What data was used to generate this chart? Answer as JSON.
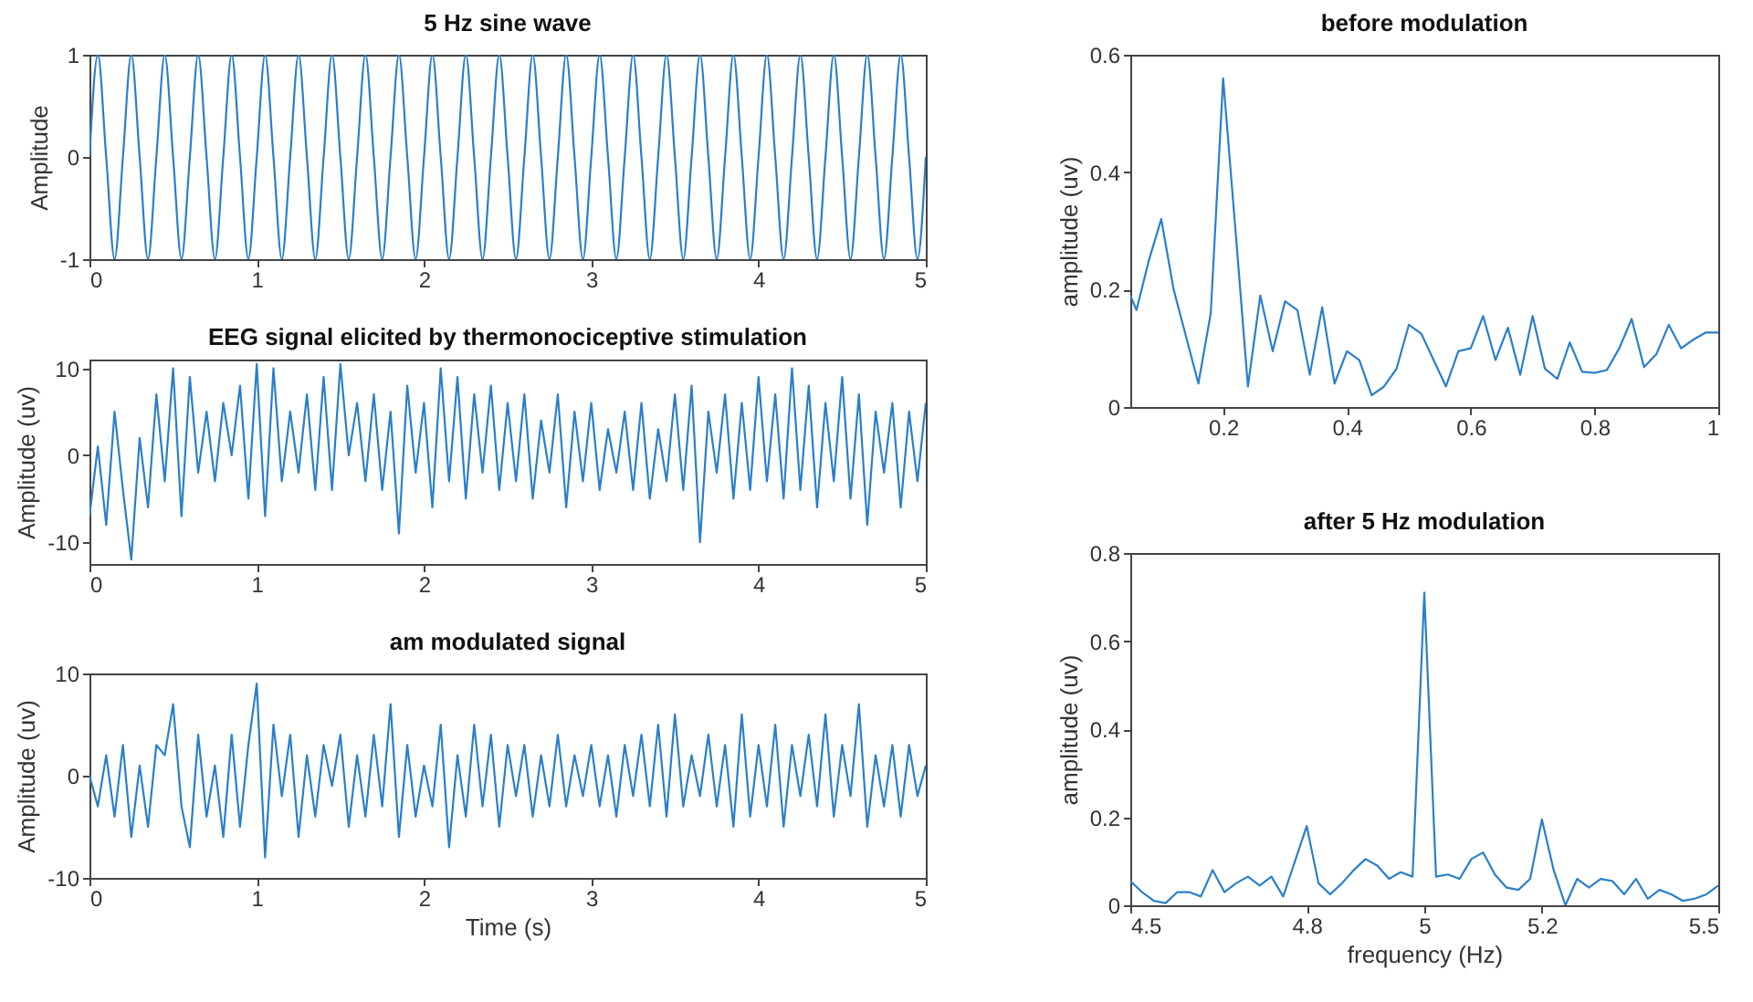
{
  "chart_data": [
    {
      "type": "line",
      "title": "5 Hz sine wave",
      "ylabel": "Amplitude",
      "xlim": [
        0,
        5
      ],
      "xticks": [
        0,
        1,
        2,
        3,
        4,
        5
      ],
      "ylim": [
        -1,
        1
      ],
      "yticks": [
        -1,
        0,
        1
      ],
      "grid": false,
      "x": [
        0,
        0.05,
        0.1,
        0.15,
        0.2,
        0.25,
        0.3,
        0.35,
        0.4,
        0.45,
        0.5,
        0.55,
        0.6,
        0.65,
        0.7,
        0.75,
        0.8,
        0.85,
        0.9,
        0.95,
        1,
        1.05,
        1.1,
        1.15,
        1.2,
        1.25,
        1.3,
        1.35,
        1.4,
        1.45,
        1.5,
        1.55,
        1.6,
        1.65,
        1.7,
        1.75,
        1.8,
        1.85,
        1.9,
        1.95,
        2,
        2.05,
        2.1,
        2.15,
        2.2,
        2.25,
        2.3,
        2.35,
        2.4,
        2.45,
        2.5,
        2.55,
        2.6,
        2.65,
        2.7,
        2.75,
        2.8,
        2.85,
        2.9,
        2.95,
        3,
        3.05,
        3.1,
        3.15,
        3.2,
        3.25,
        3.3,
        3.35,
        3.4,
        3.45,
        3.5,
        3.55,
        3.6,
        3.65,
        3.7,
        3.75,
        3.8,
        3.85,
        3.9,
        3.95,
        4,
        4.05,
        4.1,
        4.15,
        4.2,
        4.25,
        4.3,
        4.35,
        4.4,
        4.45,
        4.5,
        4.55,
        4.6,
        4.65,
        4.7,
        4.75,
        4.8,
        4.85,
        4.9,
        4.95,
        5
      ],
      "series": [
        {
          "color": "#2a7fc9",
          "values": [
            0,
            1,
            0,
            -1,
            0,
            1,
            0,
            -1,
            0,
            1,
            0,
            -1,
            0,
            1,
            0,
            -1,
            0,
            1,
            0,
            -1,
            0,
            1,
            0,
            -1,
            0,
            1,
            0,
            -1,
            0,
            1,
            0,
            -1,
            0,
            1,
            0,
            -1,
            0,
            1,
            0,
            -1,
            0,
            1,
            0,
            -1,
            0,
            1,
            0,
            -1,
            0,
            1,
            0,
            -1,
            0,
            1,
            0,
            -1,
            0,
            1,
            0,
            -1,
            0,
            1,
            0,
            -1,
            0,
            1,
            0,
            -1,
            0,
            1,
            0,
            -1,
            0,
            1,
            0,
            -1,
            0,
            1,
            0,
            -1,
            0,
            1,
            0,
            -1,
            0,
            1,
            0,
            -1,
            0,
            1,
            0,
            -1,
            0,
            1,
            0,
            -1,
            0,
            1,
            0,
            -1,
            0
          ]
        }
      ]
    },
    {
      "type": "line",
      "title": "EEG signal elicited by thermonociceptive stimulation",
      "ylabel": "Amplitude (uv)",
      "xlim": [
        0,
        5
      ],
      "xticks": [
        0,
        1,
        2,
        3,
        4,
        5
      ],
      "ylim": [
        -12.5,
        11
      ],
      "yticks": [
        -10,
        0,
        10
      ],
      "grid": false,
      "x": [
        0,
        0.05,
        0.1,
        0.15,
        0.2,
        0.25,
        0.3,
        0.35,
        0.4,
        0.45,
        0.5,
        0.55,
        0.6,
        0.65,
        0.7,
        0.75,
        0.8,
        0.85,
        0.9,
        0.95,
        1,
        1.05,
        1.1,
        1.15,
        1.2,
        1.25,
        1.3,
        1.35,
        1.4,
        1.45,
        1.5,
        1.55,
        1.6,
        1.65,
        1.7,
        1.75,
        1.8,
        1.85,
        1.9,
        1.95,
        2,
        2.05,
        2.1,
        2.15,
        2.2,
        2.25,
        2.3,
        2.35,
        2.4,
        2.45,
        2.5,
        2.55,
        2.6,
        2.65,
        2.7,
        2.75,
        2.8,
        2.85,
        2.9,
        2.95,
        3,
        3.05,
        3.1,
        3.15,
        3.2,
        3.25,
        3.3,
        3.35,
        3.4,
        3.45,
        3.5,
        3.55,
        3.6,
        3.65,
        3.7,
        3.75,
        3.8,
        3.85,
        3.9,
        3.95,
        4,
        4.05,
        4.1,
        4.15,
        4.2,
        4.25,
        4.3,
        4.35,
        4.4,
        4.45,
        4.5,
        4.55,
        4.6,
        4.65,
        4.7,
        4.75,
        4.8,
        4.85,
        4.9,
        4.95,
        5
      ],
      "series": [
        {
          "color": "#2a7fc9",
          "values": [
            -7,
            1,
            -8,
            5,
            -4,
            -12,
            2,
            -6,
            7,
            -3,
            10,
            -7,
            9,
            -2,
            5,
            -3,
            6,
            0,
            8,
            -5,
            10.5,
            -7,
            10,
            -3,
            5,
            -2,
            7,
            -4,
            9,
            -4,
            10.5,
            0,
            6,
            -3,
            7,
            -4,
            5,
            -9,
            8,
            -2,
            6,
            -6,
            10,
            -3,
            9,
            -5,
            7,
            -2,
            8,
            -4,
            6,
            -3,
            7,
            -5,
            4,
            -2,
            7,
            -6,
            5,
            -3,
            6,
            -4,
            3,
            -2,
            5,
            -4,
            6,
            -5,
            3,
            -3,
            7,
            -4,
            8,
            -10,
            5,
            -2,
            7,
            -5,
            6,
            -4,
            9,
            -3,
            7,
            -5,
            10,
            -4,
            8,
            -6,
            6,
            -3,
            9,
            -5,
            7,
            -8,
            5,
            -2,
            6,
            -6,
            5,
            -3,
            6
          ]
        }
      ]
    },
    {
      "type": "line",
      "title": "am modulated signal",
      "xlabel": "Time (s)",
      "ylabel": "Amplitude (uv)",
      "xlim": [
        0,
        5
      ],
      "xticks": [
        0,
        1,
        2,
        3,
        4,
        5
      ],
      "ylim": [
        -10,
        10
      ],
      "yticks": [
        -10,
        0,
        10
      ],
      "grid": false,
      "x": [
        0,
        0.05,
        0.1,
        0.15,
        0.2,
        0.25,
        0.3,
        0.35,
        0.4,
        0.45,
        0.5,
        0.55,
        0.6,
        0.65,
        0.7,
        0.75,
        0.8,
        0.85,
        0.9,
        0.95,
        1,
        1.05,
        1.1,
        1.15,
        1.2,
        1.25,
        1.3,
        1.35,
        1.4,
        1.45,
        1.5,
        1.55,
        1.6,
        1.65,
        1.7,
        1.75,
        1.8,
        1.85,
        1.9,
        1.95,
        2,
        2.05,
        2.1,
        2.15,
        2.2,
        2.25,
        2.3,
        2.35,
        2.4,
        2.45,
        2.5,
        2.55,
        2.6,
        2.65,
        2.7,
        2.75,
        2.8,
        2.85,
        2.9,
        2.95,
        3,
        3.05,
        3.1,
        3.15,
        3.2,
        3.25,
        3.3,
        3.35,
        3.4,
        3.45,
        3.5,
        3.55,
        3.6,
        3.65,
        3.7,
        3.75,
        3.8,
        3.85,
        3.9,
        3.95,
        4,
        4.05,
        4.1,
        4.15,
        4.2,
        4.25,
        4.3,
        4.35,
        4.4,
        4.45,
        4.5,
        4.55,
        4.6,
        4.65,
        4.7,
        4.75,
        4.8,
        4.85,
        4.9,
        4.95,
        5
      ],
      "series": [
        {
          "color": "#2a7fc9",
          "values": [
            0,
            -3,
            2,
            -4,
            3,
            -6,
            1,
            -5,
            3,
            2,
            7,
            -3,
            -7,
            4,
            -4,
            1,
            -6,
            4,
            -5,
            3,
            9,
            -8,
            5,
            -2,
            4,
            -6,
            2,
            -4,
            3,
            -1,
            4,
            -5,
            2,
            -4,
            4,
            -3,
            7,
            -6,
            3,
            -4,
            1,
            -3,
            5,
            -7,
            2,
            -4,
            5,
            -3,
            4,
            -5,
            3,
            -2,
            3,
            -4,
            2,
            -3,
            4,
            -3,
            2,
            -2,
            3,
            -3,
            2,
            -4,
            3,
            -2,
            4,
            -3,
            5,
            -4,
            6,
            -3,
            2,
            -2,
            4,
            -3,
            3,
            -5,
            6,
            -4,
            3,
            -3,
            5,
            -5,
            3,
            -2,
            4,
            -3,
            6,
            -4,
            3,
            -2,
            7,
            -5,
            2,
            -3,
            3,
            -4,
            3,
            -2,
            1
          ]
        }
      ]
    },
    {
      "type": "line",
      "title": "before modulation",
      "ylabel": "amplitude (uv)",
      "xlim": [
        0.05,
        1
      ],
      "xticks": [
        0.2,
        0.4,
        0.6,
        0.8,
        1
      ],
      "ylim": [
        0,
        0.6
      ],
      "yticks": [
        0,
        0.2,
        0.4,
        0.6
      ],
      "grid": false,
      "x": [
        0.05,
        0.06,
        0.08,
        0.1,
        0.12,
        0.14,
        0.16,
        0.18,
        0.2,
        0.22,
        0.24,
        0.26,
        0.28,
        0.3,
        0.32,
        0.34,
        0.36,
        0.38,
        0.4,
        0.42,
        0.44,
        0.46,
        0.48,
        0.5,
        0.52,
        0.54,
        0.56,
        0.58,
        0.6,
        0.62,
        0.64,
        0.66,
        0.68,
        0.7,
        0.72,
        0.74,
        0.76,
        0.78,
        0.8,
        0.82,
        0.84,
        0.86,
        0.88,
        0.9,
        0.92,
        0.94,
        0.96,
        0.98,
        1
      ],
      "series": [
        {
          "color": "#2a7fc9",
          "values": [
            0.19,
            0.165,
            0.25,
            0.32,
            0.2,
            0.12,
            0.04,
            0.16,
            0.56,
            0.3,
            0.035,
            0.19,
            0.095,
            0.18,
            0.165,
            0.055,
            0.17,
            0.04,
            0.095,
            0.08,
            0.02,
            0.035,
            0.065,
            0.14,
            0.125,
            0.08,
            0.035,
            0.095,
            0.1,
            0.155,
            0.08,
            0.135,
            0.055,
            0.155,
            0.065,
            0.048,
            0.11,
            0.06,
            0.058,
            0.063,
            0.1,
            0.15,
            0.068,
            0.09,
            0.14,
            0.1,
            0.115,
            0.127,
            0.127
          ]
        }
      ]
    },
    {
      "type": "line",
      "title": "after 5 Hz modulation",
      "xlabel": "frequency (Hz)",
      "ylabel": "amplitude (uv)",
      "xlim": [
        4.5,
        5.5
      ],
      "xticks": [
        4.5,
        4.8,
        5,
        5.2,
        5.5
      ],
      "ylim": [
        0,
        0.8
      ],
      "yticks": [
        0,
        0.2,
        0.4,
        0.6,
        0.8
      ],
      "grid": false,
      "x": [
        4.5,
        4.52,
        4.54,
        4.56,
        4.58,
        4.6,
        4.62,
        4.64,
        4.66,
        4.68,
        4.7,
        4.72,
        4.74,
        4.76,
        4.78,
        4.8,
        4.82,
        4.84,
        4.86,
        4.88,
        4.9,
        4.92,
        4.94,
        4.96,
        4.98,
        5,
        5.02,
        5.04,
        5.06,
        5.08,
        5.1,
        5.12,
        5.14,
        5.16,
        5.18,
        5.2,
        5.22,
        5.24,
        5.26,
        5.28,
        5.3,
        5.32,
        5.34,
        5.36,
        5.38,
        5.4,
        5.42,
        5.44,
        5.46,
        5.48,
        5.5
      ],
      "series": [
        {
          "color": "#2a7fc9",
          "values": [
            0.055,
            0.03,
            0.01,
            0.005,
            0.03,
            0.03,
            0.02,
            0.08,
            0.03,
            0.05,
            0.065,
            0.045,
            0.065,
            0.02,
            0.1,
            0.18,
            0.05,
            0.025,
            0.05,
            0.08,
            0.105,
            0.09,
            0.06,
            0.075,
            0.065,
            0.71,
            0.065,
            0.07,
            0.06,
            0.105,
            0.12,
            0.07,
            0.04,
            0.035,
            0.06,
            0.195,
            0.08,
            0.0,
            0.06,
            0.04,
            0.06,
            0.055,
            0.025,
            0.06,
            0.015,
            0.035,
            0.025,
            0.01,
            0.015,
            0.025,
            0.045
          ]
        }
      ]
    }
  ]
}
